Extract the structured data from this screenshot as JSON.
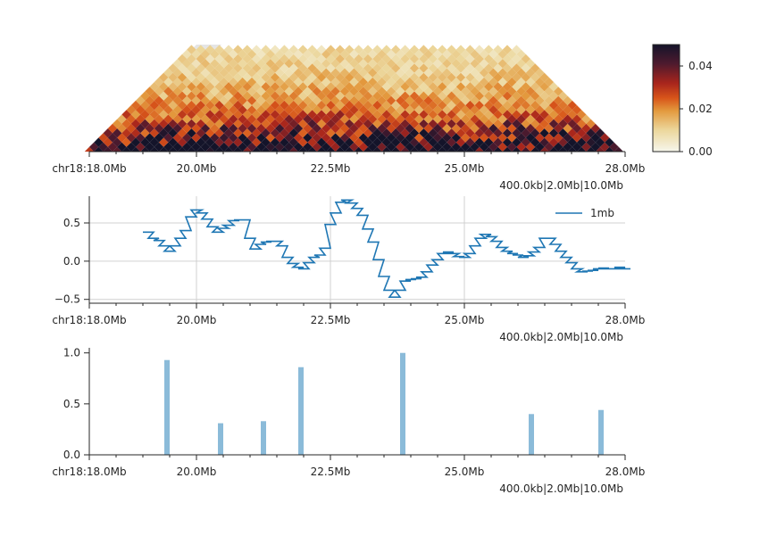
{
  "chart_data": [
    {
      "type": "heatmap",
      "title": "",
      "region": {
        "chrom": "chr18",
        "start_mb": 18.0,
        "end_mb": 28.0
      },
      "xticks": [
        "chr18:18.0Mb",
        "20.0Mb",
        "22.5Mb",
        "25.0Mb",
        "28.0Mb"
      ],
      "scale_label": "400.0kb|2.0Mb|10.0Mb",
      "colorbar": {
        "min": 0.0,
        "max": 0.05,
        "ticks": [
          "0.00",
          "0.02",
          "0.04"
        ],
        "colors": [
          "#f6f6ec",
          "#ecd79c",
          "#e39a3e",
          "#d8551a",
          "#a8251c",
          "#4e1a2e",
          "#14142a"
        ]
      },
      "masked_fill": "#e5e5e5"
    },
    {
      "type": "line",
      "step": true,
      "legend": "1mb",
      "legend_position": "top-right",
      "grid": true,
      "ylim": [
        -0.55,
        0.85
      ],
      "yticks": [
        "0.5",
        "0.0",
        "−0.5"
      ],
      "xticks": [
        "chr18:18.0Mb",
        "20.0Mb",
        "22.5Mb",
        "25.0Mb",
        "28.0Mb"
      ],
      "scale_label": "400.0kb|2.0Mb|10.0Mb",
      "color": "#1f77b4",
      "x": [
        19.0,
        19.1,
        19.2,
        19.3,
        19.4,
        19.5,
        19.6,
        19.7,
        19.8,
        19.9,
        20.0,
        20.1,
        20.2,
        20.3,
        20.4,
        20.5,
        20.6,
        20.7,
        20.8,
        20.9,
        21.0,
        21.1,
        21.2,
        21.3,
        21.4,
        21.5,
        21.6,
        21.7,
        21.8,
        21.9,
        22.0,
        22.1,
        22.2,
        22.3,
        22.4,
        22.5,
        22.6,
        22.7,
        22.8,
        22.9,
        23.0,
        23.1,
        23.2,
        23.3,
        23.4,
        23.5,
        23.6,
        23.7,
        23.8,
        23.9,
        24.0,
        24.1,
        24.2,
        24.3,
        24.4,
        24.5,
        24.6,
        24.7,
        24.8,
        24.9,
        25.0,
        25.1,
        25.2,
        25.3,
        25.4,
        25.5,
        25.6,
        25.7,
        25.8,
        25.9,
        26.0,
        26.1,
        26.2,
        26.3,
        26.4,
        26.5,
        26.6,
        26.7,
        26.8,
        26.9,
        27.0,
        27.1,
        27.2,
        27.3,
        27.4,
        27.5,
        27.6,
        27.7,
        27.8,
        27.9
      ],
      "y": [
        0.38,
        0.3,
        0.27,
        0.2,
        0.13,
        0.2,
        0.3,
        0.4,
        0.58,
        0.67,
        0.63,
        0.55,
        0.45,
        0.38,
        0.43,
        0.47,
        0.53,
        0.54,
        0.54,
        0.3,
        0.16,
        0.22,
        0.25,
        0.26,
        0.26,
        0.2,
        0.05,
        -0.03,
        -0.08,
        -0.1,
        -0.02,
        0.05,
        0.08,
        0.17,
        0.48,
        0.63,
        0.77,
        0.8,
        0.76,
        0.69,
        0.6,
        0.42,
        0.25,
        0.02,
        -0.2,
        -0.38,
        -0.47,
        -0.38,
        -0.26,
        -0.24,
        -0.23,
        -0.21,
        -0.14,
        -0.05,
        0.02,
        0.1,
        0.12,
        0.1,
        0.06,
        0.05,
        0.1,
        0.2,
        0.3,
        0.35,
        0.32,
        0.26,
        0.18,
        0.13,
        0.1,
        0.08,
        0.05,
        0.07,
        0.12,
        0.18,
        0.3,
        0.3,
        0.22,
        0.13,
        0.05,
        -0.02,
        -0.1,
        -0.14,
        -0.13,
        -0.12,
        -0.1,
        -0.09,
        -0.1,
        -0.1,
        -0.08,
        -0.1
      ]
    },
    {
      "type": "bar",
      "ylim": [
        0.0,
        1.05
      ],
      "yticks": [
        "1.0",
        "0.5",
        "0.0"
      ],
      "xticks": [
        "chr18:18.0Mb",
        "20.0Mb",
        "22.5Mb",
        "25.0Mb",
        "28.0Mb"
      ],
      "scale_label": "400.0kb|2.0Mb|10.0Mb",
      "color": "#8bbbd9",
      "x": [
        19.45,
        20.45,
        21.25,
        21.95,
        23.85,
        26.25,
        27.55
      ],
      "values": [
        0.93,
        0.31,
        0.33,
        0.86,
        1.0,
        0.4,
        0.44
      ]
    }
  ]
}
